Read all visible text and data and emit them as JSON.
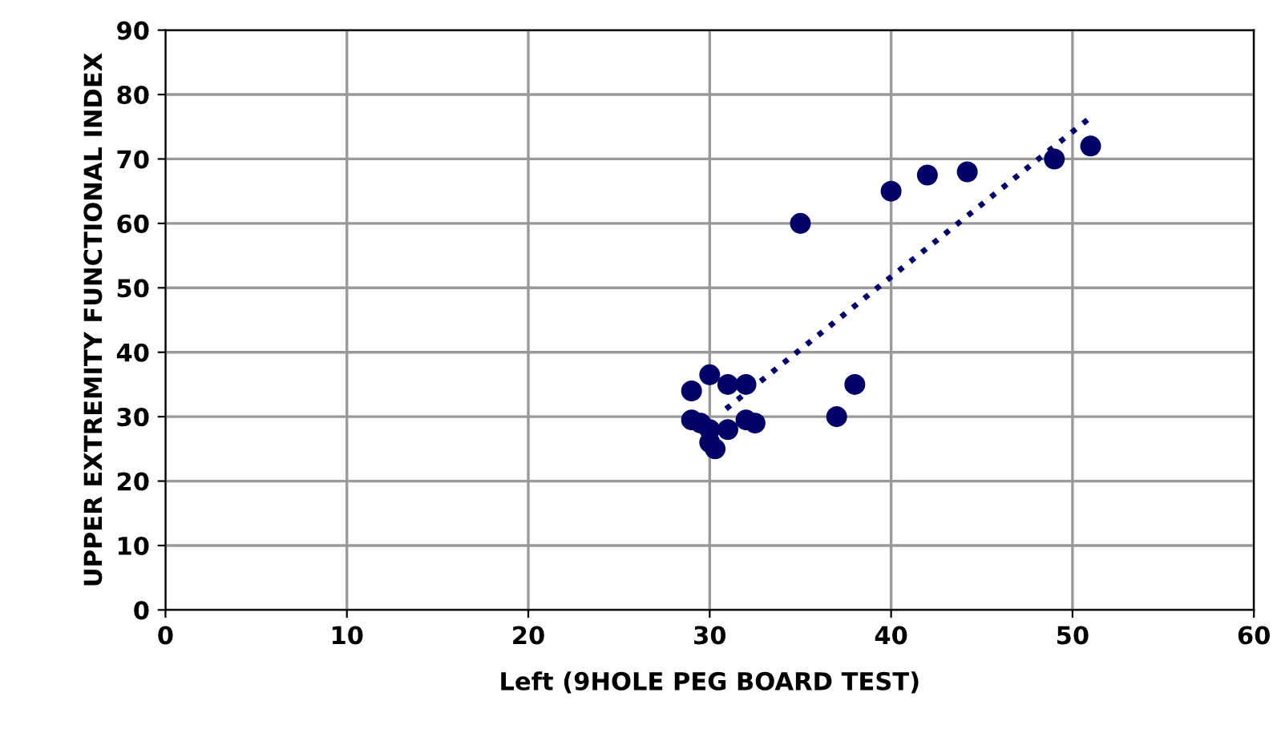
{
  "chart_data": {
    "type": "scatter",
    "xlabel": "Left (9HOLE PEG BOARD TEST)",
    "ylabel": "UPPER EXTREMITY FUNCTIONAL INDEX",
    "xlim": [
      0,
      60
    ],
    "xticks": [
      0,
      10,
      20,
      30,
      40,
      50,
      60
    ],
    "ylim": [
      0,
      90
    ],
    "yticks": [
      0,
      10,
      20,
      30,
      40,
      50,
      60,
      70,
      80,
      90
    ],
    "grid": true,
    "series": [
      {
        "marker": "circle",
        "color": "#000066",
        "x": [
          29,
          29,
          29.5,
          30,
          31,
          32,
          30,
          30,
          30.3,
          31,
          32,
          32.5,
          35,
          38,
          37,
          40,
          42,
          44.2,
          49,
          51
        ],
        "values": [
          34,
          29.5,
          29,
          36.5,
          35,
          35,
          28,
          26,
          25,
          28,
          29.5,
          29,
          60,
          35,
          30,
          65,
          67.5,
          68,
          70,
          72
        ]
      },
      {
        "type": "line",
        "color": "#000066",
        "line_style": "dotted",
        "x": [
          30.9,
          51.1
        ],
        "values": [
          31.2,
          76.7
        ]
      }
    ]
  }
}
